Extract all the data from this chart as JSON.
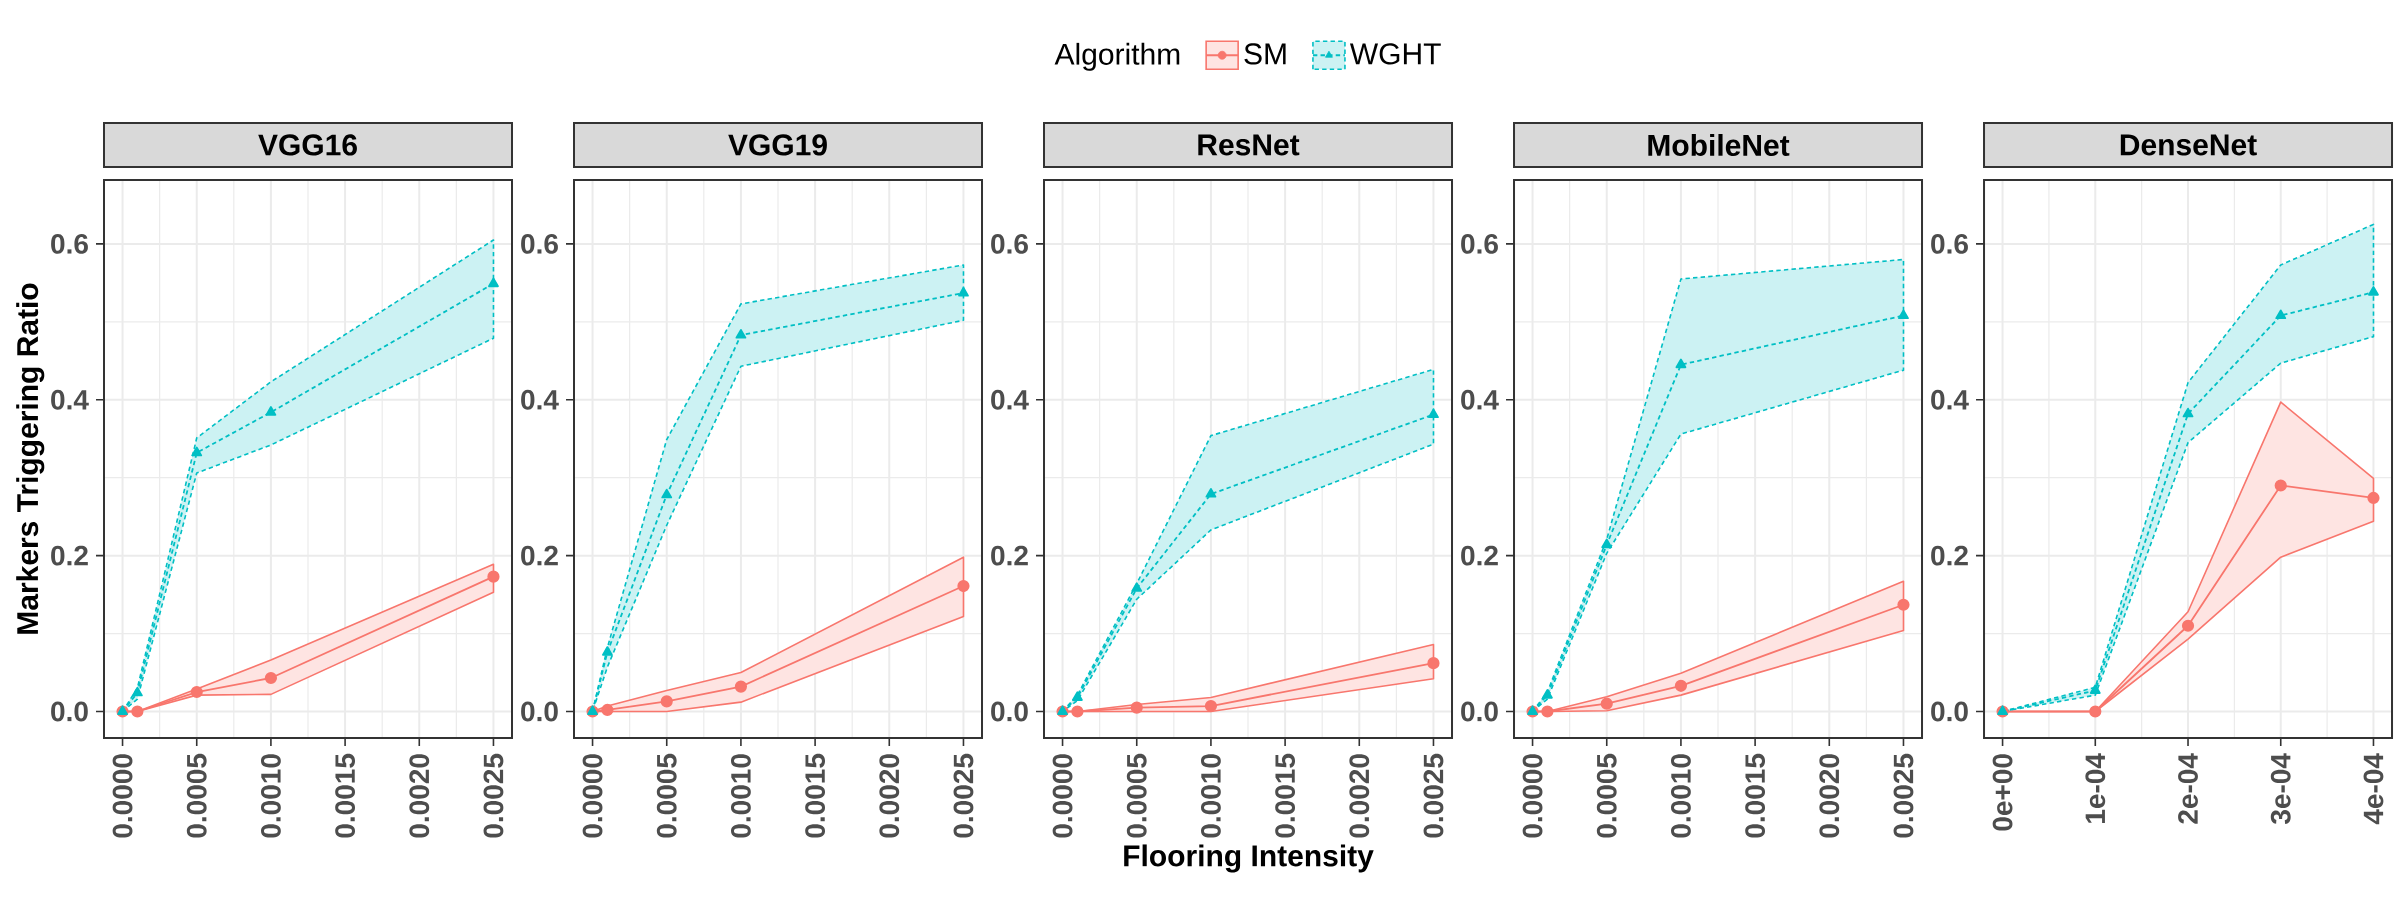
{
  "chart_data": [
    {
      "type": "line",
      "title": "VGG16",
      "ylabel": "Markers Triggering Ratio",
      "x": [
        0,
        0.0001,
        0.0005,
        0.001,
        0.0025
      ],
      "xlim": [
        -0.000125,
        0.002625
      ],
      "ylim": [
        -0.034,
        0.682
      ],
      "xticks": [
        {
          "value": 0,
          "label": "0.0000"
        },
        {
          "value": 0.0005,
          "label": "0.0005"
        },
        {
          "value": 0.001,
          "label": "0.0010"
        },
        {
          "value": 0.0015,
          "label": "0.0015"
        },
        {
          "value": 0.002,
          "label": "0.0020"
        },
        {
          "value": 0.0025,
          "label": "0.0025"
        }
      ],
      "yticks": [
        {
          "value": 0,
          "label": "0.0"
        },
        {
          "value": 0.2,
          "label": "0.2"
        },
        {
          "value": 0.4,
          "label": "0.4"
        },
        {
          "value": 0.6,
          "label": "0.6"
        }
      ],
      "grid": true,
      "series": [
        {
          "color": "#f8766d",
          "marker": "circle",
          "line_style": "solid",
          "values": [
            0,
            0,
            0.025,
            0.043,
            0.173
          ],
          "lower": [
            0,
            0,
            0.021,
            0.022,
            0.153
          ],
          "upper": [
            0,
            0,
            0.029,
            0.066,
            0.189
          ]
        },
        {
          "color": "#00bfc4",
          "marker": "triangle",
          "line_style": "dashed",
          "values": [
            0,
            0.024,
            0.332,
            0.384,
            0.549
          ],
          "lower": [
            0,
            0.016,
            0.306,
            0.342,
            0.479
          ],
          "upper": [
            0,
            0.03,
            0.351,
            0.423,
            0.605
          ]
        }
      ]
    },
    {
      "type": "line",
      "title": "VGG19",
      "x": [
        0,
        0.0001,
        0.0005,
        0.001,
        0.0025
      ],
      "xlim": [
        -0.000125,
        0.002625
      ],
      "ylim": [
        -0.034,
        0.682
      ],
      "xticks": [
        {
          "value": 0,
          "label": "0.0000"
        },
        {
          "value": 0.0005,
          "label": "0.0005"
        },
        {
          "value": 0.001,
          "label": "0.0010"
        },
        {
          "value": 0.0015,
          "label": "0.0015"
        },
        {
          "value": 0.002,
          "label": "0.0020"
        },
        {
          "value": 0.0025,
          "label": "0.0025"
        }
      ],
      "yticks": [
        {
          "value": 0,
          "label": "0.0"
        },
        {
          "value": 0.2,
          "label": "0.2"
        },
        {
          "value": 0.4,
          "label": "0.4"
        },
        {
          "value": 0.6,
          "label": "0.6"
        }
      ],
      "grid": true,
      "series": [
        {
          "color": "#f8766d",
          "marker": "circle",
          "line_style": "solid",
          "values": [
            0,
            0.002,
            0.013,
            0.032,
            0.161
          ],
          "lower": [
            0,
            0,
            0,
            0.012,
            0.122
          ],
          "upper": [
            0,
            0.007,
            0.027,
            0.05,
            0.198
          ]
        },
        {
          "color": "#00bfc4",
          "marker": "triangle",
          "line_style": "dashed",
          "values": [
            0,
            0.076,
            0.278,
            0.483,
            0.537
          ],
          "lower": [
            0,
            0.057,
            0.239,
            0.443,
            0.502
          ],
          "upper": [
            0,
            0.082,
            0.349,
            0.523,
            0.573
          ]
        }
      ]
    },
    {
      "type": "line",
      "title": "ResNet",
      "xlabel": "Flooring Intensity",
      "legend_title": "Algorithm",
      "legend": "top",
      "x": [
        0,
        0.0001,
        0.0005,
        0.001,
        0.0025
      ],
      "xlim": [
        -0.000125,
        0.002625
      ],
      "ylim": [
        -0.034,
        0.682
      ],
      "xticks": [
        {
          "value": 0,
          "label": "0.0000"
        },
        {
          "value": 0.0005,
          "label": "0.0005"
        },
        {
          "value": 0.001,
          "label": "0.0010"
        },
        {
          "value": 0.0015,
          "label": "0.0015"
        },
        {
          "value": 0.002,
          "label": "0.0020"
        },
        {
          "value": 0.0025,
          "label": "0.0025"
        }
      ],
      "yticks": [
        {
          "value": 0,
          "label": "0.0"
        },
        {
          "value": 0.2,
          "label": "0.2"
        },
        {
          "value": 0.4,
          "label": "0.4"
        },
        {
          "value": 0.6,
          "label": "0.6"
        }
      ],
      "grid": true,
      "series": [
        {
          "name": "SM",
          "color": "#f8766d",
          "marker": "circle",
          "line_style": "solid",
          "values": [
            0,
            0,
            0.005,
            0.007,
            0.062
          ],
          "lower": [
            0,
            0,
            0,
            0,
            0.042
          ],
          "upper": [
            0,
            0,
            0.009,
            0.018,
            0.086
          ]
        },
        {
          "name": "WGHT",
          "color": "#00bfc4",
          "marker": "triangle",
          "line_style": "dashed",
          "values": [
            0,
            0.018,
            0.158,
            0.279,
            0.381
          ],
          "lower": [
            0,
            0.014,
            0.144,
            0.233,
            0.343
          ],
          "upper": [
            0,
            0.021,
            0.164,
            0.354,
            0.439
          ]
        }
      ]
    },
    {
      "type": "line",
      "title": "MobileNet",
      "x": [
        0,
        0.0001,
        0.0005,
        0.001,
        0.0025
      ],
      "xlim": [
        -0.000125,
        0.002625
      ],
      "ylim": [
        -0.034,
        0.682
      ],
      "xticks": [
        {
          "value": 0,
          "label": "0.0000"
        },
        {
          "value": 0.0005,
          "label": "0.0005"
        },
        {
          "value": 0.001,
          "label": "0.0010"
        },
        {
          "value": 0.0015,
          "label": "0.0015"
        },
        {
          "value": 0.002,
          "label": "0.0020"
        },
        {
          "value": 0.0025,
          "label": "0.0025"
        }
      ],
      "yticks": [
        {
          "value": 0,
          "label": "0.0"
        },
        {
          "value": 0.2,
          "label": "0.2"
        },
        {
          "value": 0.4,
          "label": "0.4"
        },
        {
          "value": 0.6,
          "label": "0.6"
        }
      ],
      "grid": true,
      "series": [
        {
          "color": "#f8766d",
          "marker": "circle",
          "line_style": "solid",
          "values": [
            0,
            0,
            0.01,
            0.033,
            0.137
          ],
          "lower": [
            0,
            0,
            0.001,
            0.021,
            0.104
          ],
          "upper": [
            0,
            0,
            0.019,
            0.049,
            0.167
          ]
        },
        {
          "color": "#00bfc4",
          "marker": "triangle",
          "line_style": "dashed",
          "values": [
            0,
            0.021,
            0.214,
            0.445,
            0.508
          ],
          "lower": [
            0,
            0.016,
            0.203,
            0.356,
            0.438
          ],
          "upper": [
            0,
            0.025,
            0.221,
            0.555,
            0.58
          ]
        }
      ]
    },
    {
      "type": "line",
      "title": "DenseNet",
      "x": [
        0,
        0.0001,
        0.0002,
        0.0003,
        0.0004
      ],
      "xlim": [
        -2e-05,
        0.00042
      ],
      "ylim": [
        -0.034,
        0.682
      ],
      "xticks": [
        {
          "value": 0,
          "label": "0e+00"
        },
        {
          "value": 0.0001,
          "label": "1e-04"
        },
        {
          "value": 0.0002,
          "label": "2e-04"
        },
        {
          "value": 0.0003,
          "label": "3e-04"
        },
        {
          "value": 0.0004,
          "label": "4e-04"
        }
      ],
      "yticks": [
        {
          "value": 0,
          "label": "0.0"
        },
        {
          "value": 0.2,
          "label": "0.2"
        },
        {
          "value": 0.4,
          "label": "0.4"
        },
        {
          "value": 0.6,
          "label": "0.6"
        }
      ],
      "grid": true,
      "series": [
        {
          "color": "#f8766d",
          "marker": "circle",
          "line_style": "solid",
          "values": [
            0,
            0,
            0.11,
            0.29,
            0.274
          ],
          "lower": [
            0,
            0,
            0.093,
            0.198,
            0.244
          ],
          "upper": [
            0,
            0,
            0.128,
            0.397,
            0.299
          ]
        },
        {
          "color": "#00bfc4",
          "marker": "triangle",
          "line_style": "dashed",
          "values": [
            0,
            0.027,
            0.382,
            0.508,
            0.538
          ],
          "lower": [
            0,
            0.021,
            0.345,
            0.447,
            0.481
          ],
          "upper": [
            0,
            0.031,
            0.422,
            0.573,
            0.625
          ]
        }
      ]
    }
  ]
}
